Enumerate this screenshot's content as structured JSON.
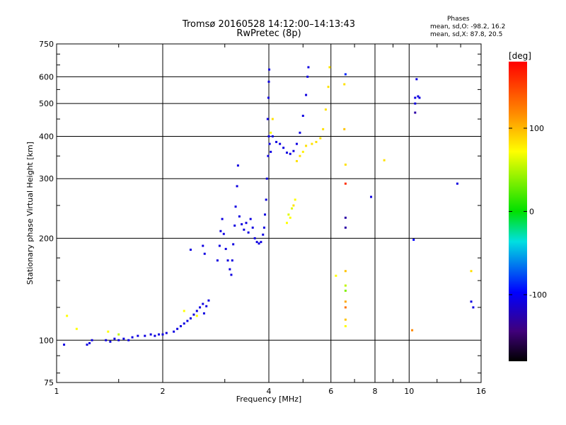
{
  "chart_data": {
    "type": "scatter",
    "title": "Tromsø 20160528 14:12:00–14:13:43",
    "subtitle": "RwPretec (8p)",
    "annotation": {
      "heading": "Phases",
      "line1": "mean, sd,O: -98.2, 16.2",
      "line2": "mean, sd,X:  87.8, 20.5"
    },
    "xlabel": "Frequency [MHz]",
    "ylabel": "Stationary phase Virtual Height [km]",
    "x_scale": "log",
    "y_scale": "log",
    "xlim": [
      1,
      16
    ],
    "ylim": [
      75,
      750
    ],
    "x_ticks": [
      1,
      2,
      4,
      6,
      8,
      10,
      16
    ],
    "x_tick_labels": [
      "1",
      "2",
      "4",
      "6",
      "8",
      "10",
      "16"
    ],
    "y_ticks": [
      75,
      100,
      200,
      300,
      400,
      500,
      600,
      750
    ],
    "y_tick_labels": [
      "75",
      "100",
      "200",
      "300",
      "400",
      "500",
      "600",
      "750"
    ],
    "grid": true,
    "colorbar": {
      "label": "[deg]",
      "range": [
        -180,
        180
      ],
      "ticks": [
        100,
        0,
        -100
      ],
      "tick_labels": [
        "100",
        "0",
        "-100"
      ]
    },
    "series": [
      {
        "mode": "O",
        "points": [
          [
            1.05,
            97,
            -110
          ],
          [
            1.22,
            97,
            -110
          ],
          [
            1.24,
            98,
            -110
          ],
          [
            1.26,
            100,
            -110
          ],
          [
            1.38,
            100,
            -110
          ],
          [
            1.42,
            99,
            -110
          ],
          [
            1.46,
            101,
            -110
          ],
          [
            1.5,
            100,
            -110
          ],
          [
            1.55,
            101,
            -110
          ],
          [
            1.6,
            100,
            -110
          ],
          [
            1.64,
            102,
            -110
          ],
          [
            1.7,
            103,
            -110
          ],
          [
            1.78,
            103,
            -110
          ],
          [
            1.85,
            104,
            -110
          ],
          [
            1.9,
            103,
            -110
          ],
          [
            1.95,
            104,
            -110
          ],
          [
            2.0,
            104,
            -110
          ],
          [
            2.05,
            105,
            -110
          ],
          [
            2.15,
            106,
            -110
          ],
          [
            2.2,
            108,
            -110
          ],
          [
            2.25,
            110,
            -110
          ],
          [
            2.3,
            112,
            -110
          ],
          [
            2.35,
            114,
            -110
          ],
          [
            2.4,
            116,
            -110
          ],
          [
            2.45,
            119,
            -110
          ],
          [
            2.5,
            122,
            -110
          ],
          [
            2.55,
            125,
            -110
          ],
          [
            2.6,
            128,
            -110
          ],
          [
            2.62,
            120,
            -110
          ],
          [
            2.66,
            126,
            -110
          ],
          [
            2.7,
            131,
            -110
          ],
          [
            2.4,
            185,
            -110
          ],
          [
            2.6,
            190,
            -110
          ],
          [
            2.63,
            180,
            -110
          ],
          [
            2.86,
            172,
            -110
          ],
          [
            2.9,
            190,
            -110
          ],
          [
            2.92,
            210,
            -110
          ],
          [
            2.95,
            228,
            -110
          ],
          [
            2.98,
            206,
            -110
          ],
          [
            3.02,
            186,
            -110
          ],
          [
            3.06,
            172,
            -110
          ],
          [
            3.1,
            162,
            -110
          ],
          [
            3.13,
            156,
            -110
          ],
          [
            3.15,
            172,
            -110
          ],
          [
            3.17,
            192,
            -110
          ],
          [
            3.2,
            218,
            -110
          ],
          [
            3.22,
            248,
            -110
          ],
          [
            3.25,
            285,
            -110
          ],
          [
            3.27,
            328,
            -110
          ],
          [
            3.3,
            232,
            -110
          ],
          [
            3.35,
            220,
            -110
          ],
          [
            3.4,
            212,
            -110
          ],
          [
            3.45,
            222,
            -110
          ],
          [
            3.5,
            208,
            -110
          ],
          [
            3.55,
            228,
            -110
          ],
          [
            3.6,
            215,
            -110
          ],
          [
            3.65,
            200,
            -110
          ],
          [
            3.7,
            195,
            -110
          ],
          [
            3.75,
            193,
            -110
          ],
          [
            3.8,
            195,
            -110
          ],
          [
            3.85,
            205,
            -110
          ],
          [
            3.88,
            215,
            -110
          ],
          [
            3.9,
            235,
            -110
          ],
          [
            3.93,
            260,
            -110
          ],
          [
            3.95,
            300,
            -110
          ],
          [
            3.98,
            350,
            -110
          ],
          [
            4.0,
            400,
            -110
          ],
          [
            4.02,
            380,
            -110
          ],
          [
            4.05,
            360,
            -110
          ],
          [
            3.97,
            450,
            -110
          ],
          [
            3.99,
            520,
            -110
          ],
          [
            4.0,
            580,
            -110
          ],
          [
            4.01,
            630,
            -110
          ],
          [
            4.1,
            400,
            -110
          ],
          [
            4.2,
            385,
            -110
          ],
          [
            4.3,
            380,
            -110
          ],
          [
            4.4,
            370,
            -110
          ],
          [
            4.5,
            358,
            -110
          ],
          [
            4.6,
            355,
            -110
          ],
          [
            4.7,
            362,
            -110
          ],
          [
            4.8,
            380,
            -110
          ],
          [
            4.9,
            410,
            -110
          ],
          [
            5.0,
            460,
            -110
          ],
          [
            5.1,
            530,
            -110
          ],
          [
            5.15,
            600,
            -110
          ],
          [
            5.18,
            640,
            -110
          ],
          [
            6.6,
            610,
            -90
          ],
          [
            6.6,
            230,
            -130
          ],
          [
            6.6,
            215,
            -130
          ],
          [
            7.8,
            265,
            -110
          ],
          [
            10.4,
            520,
            -110
          ],
          [
            10.4,
            500,
            -110
          ],
          [
            10.5,
            590,
            -110
          ],
          [
            10.6,
            525,
            -110
          ],
          [
            10.7,
            520,
            -110
          ],
          [
            10.4,
            470,
            -130
          ],
          [
            10.3,
            198,
            -100
          ],
          [
            13.7,
            290,
            -110
          ],
          [
            15.0,
            130,
            -110
          ],
          [
            15.2,
            125,
            -110
          ]
        ]
      },
      {
        "mode": "X",
        "points": [
          [
            1.07,
            118,
            80
          ],
          [
            1.14,
            108,
            80
          ],
          [
            1.4,
            106,
            80
          ],
          [
            1.5,
            104,
            60
          ],
          [
            2.3,
            122,
            80
          ],
          [
            2.5,
            118,
            80
          ],
          [
            4.55,
            235,
            70
          ],
          [
            4.6,
            230,
            80
          ],
          [
            4.65,
            245,
            70
          ],
          [
            4.7,
            250,
            90
          ],
          [
            4.75,
            260,
            80
          ],
          [
            4.5,
            222,
            80
          ],
          [
            4.8,
            338,
            90
          ],
          [
            4.9,
            350,
            90
          ],
          [
            5.0,
            360,
            85
          ],
          [
            5.1,
            375,
            90
          ],
          [
            5.3,
            380,
            90
          ],
          [
            5.45,
            385,
            90
          ],
          [
            5.6,
            395,
            90
          ],
          [
            5.7,
            420,
            90
          ],
          [
            5.8,
            480,
            90
          ],
          [
            5.9,
            560,
            90
          ],
          [
            5.95,
            640,
            90
          ],
          [
            4.1,
            450,
            90
          ],
          [
            4.05,
            410,
            80
          ],
          [
            6.2,
            155,
            80
          ],
          [
            6.55,
            420,
            100
          ],
          [
            6.6,
            330,
            90
          ],
          [
            6.6,
            160,
            100
          ],
          [
            6.6,
            145,
            60
          ],
          [
            6.6,
            140,
            40
          ],
          [
            6.6,
            130,
            110
          ],
          [
            6.6,
            125,
            130
          ],
          [
            6.6,
            115,
            100
          ],
          [
            6.6,
            110,
            80
          ],
          [
            6.6,
            290,
            160
          ],
          [
            6.55,
            570,
            90
          ],
          [
            8.5,
            340,
            90
          ],
          [
            10.2,
            107,
            120
          ],
          [
            15.0,
            160,
            90
          ]
        ]
      }
    ]
  }
}
